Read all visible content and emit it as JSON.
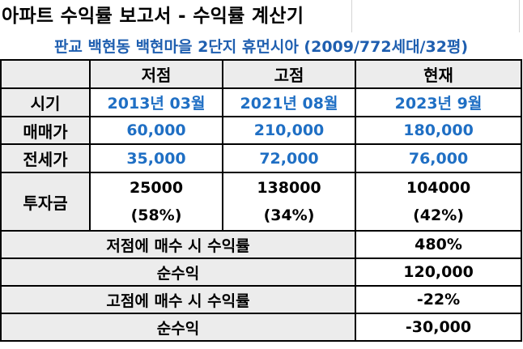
{
  "sheet": {
    "title": "아파트 수익률 보고서 - 수익률 계산기",
    "subtitle": "판교 백현동 백현마을 2단지 휴먼시아 (2009/772세대/32평)"
  },
  "columns": [
    "저점",
    "고점",
    "현재"
  ],
  "rows": {
    "period": {
      "label": "시기",
      "values": [
        "2013년 03월",
        "2021년 08월",
        "2023년 9월"
      ]
    },
    "sale": {
      "label": "매매가",
      "values": [
        "60,000",
        "210,000",
        "180,000"
      ]
    },
    "jeonse": {
      "label": "전세가",
      "values": [
        "35,000",
        "72,000",
        "76,000"
      ]
    },
    "invest": {
      "label": "투자금",
      "values": [
        "25000",
        "138000",
        "104000"
      ],
      "ratios": [
        "(58%)",
        "(34%)",
        "(42%)"
      ]
    }
  },
  "summary": [
    {
      "label": "저점에 매수 시 수익률",
      "value": "480%"
    },
    {
      "label": "순수익",
      "value": "120,000"
    },
    {
      "label": "고점에 매수 시 수익률",
      "value": "-22%"
    },
    {
      "label": "순수익",
      "value": "-30,000"
    }
  ],
  "colors": {
    "subtitle": "#1f5fb0",
    "value_blue": "#1f6fc4",
    "header_gray": "#ececec"
  }
}
